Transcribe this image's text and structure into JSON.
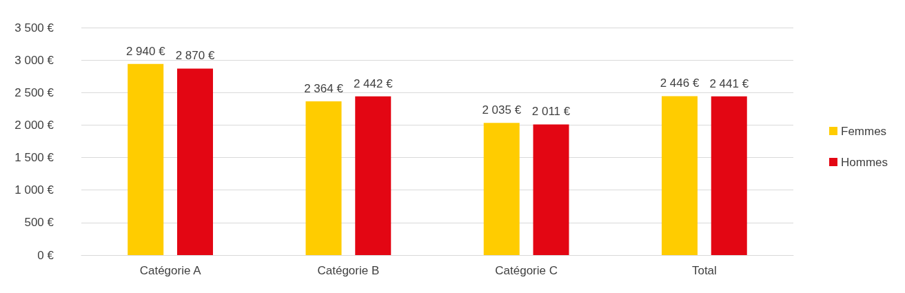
{
  "chart_data": {
    "type": "bar",
    "categories": [
      "Catégorie A",
      "Catégorie B",
      "Catégorie C",
      "Total"
    ],
    "series": [
      {
        "name": "Femmes",
        "color": "#ffcc00",
        "values": [
          2940,
          2364,
          2035,
          2446
        ],
        "value_labels": [
          "2 940 €",
          "2 364 €",
          "2 035 €",
          "2 446 €"
        ]
      },
      {
        "name": "Hommes",
        "color": "#e30613",
        "values": [
          2870,
          2442,
          2011,
          2441
        ],
        "value_labels": [
          "2 870 €",
          "2 442 €",
          "2 011 €",
          "2 441 €"
        ]
      }
    ],
    "ylim": [
      0,
      3500
    ],
    "yticks": [
      {
        "value": 0,
        "label": "0 €"
      },
      {
        "value": 500,
        "label": "500 €"
      },
      {
        "value": 1000,
        "label": "1 000 €"
      },
      {
        "value": 1500,
        "label": "1 500 €"
      },
      {
        "value": 2000,
        "label": "2 000 €"
      },
      {
        "value": 2500,
        "label": "2 500 €"
      },
      {
        "value": 3000,
        "label": "3 000 €"
      },
      {
        "value": 3500,
        "label": "3 500 €"
      }
    ],
    "grid": "y",
    "legend": "right"
  }
}
